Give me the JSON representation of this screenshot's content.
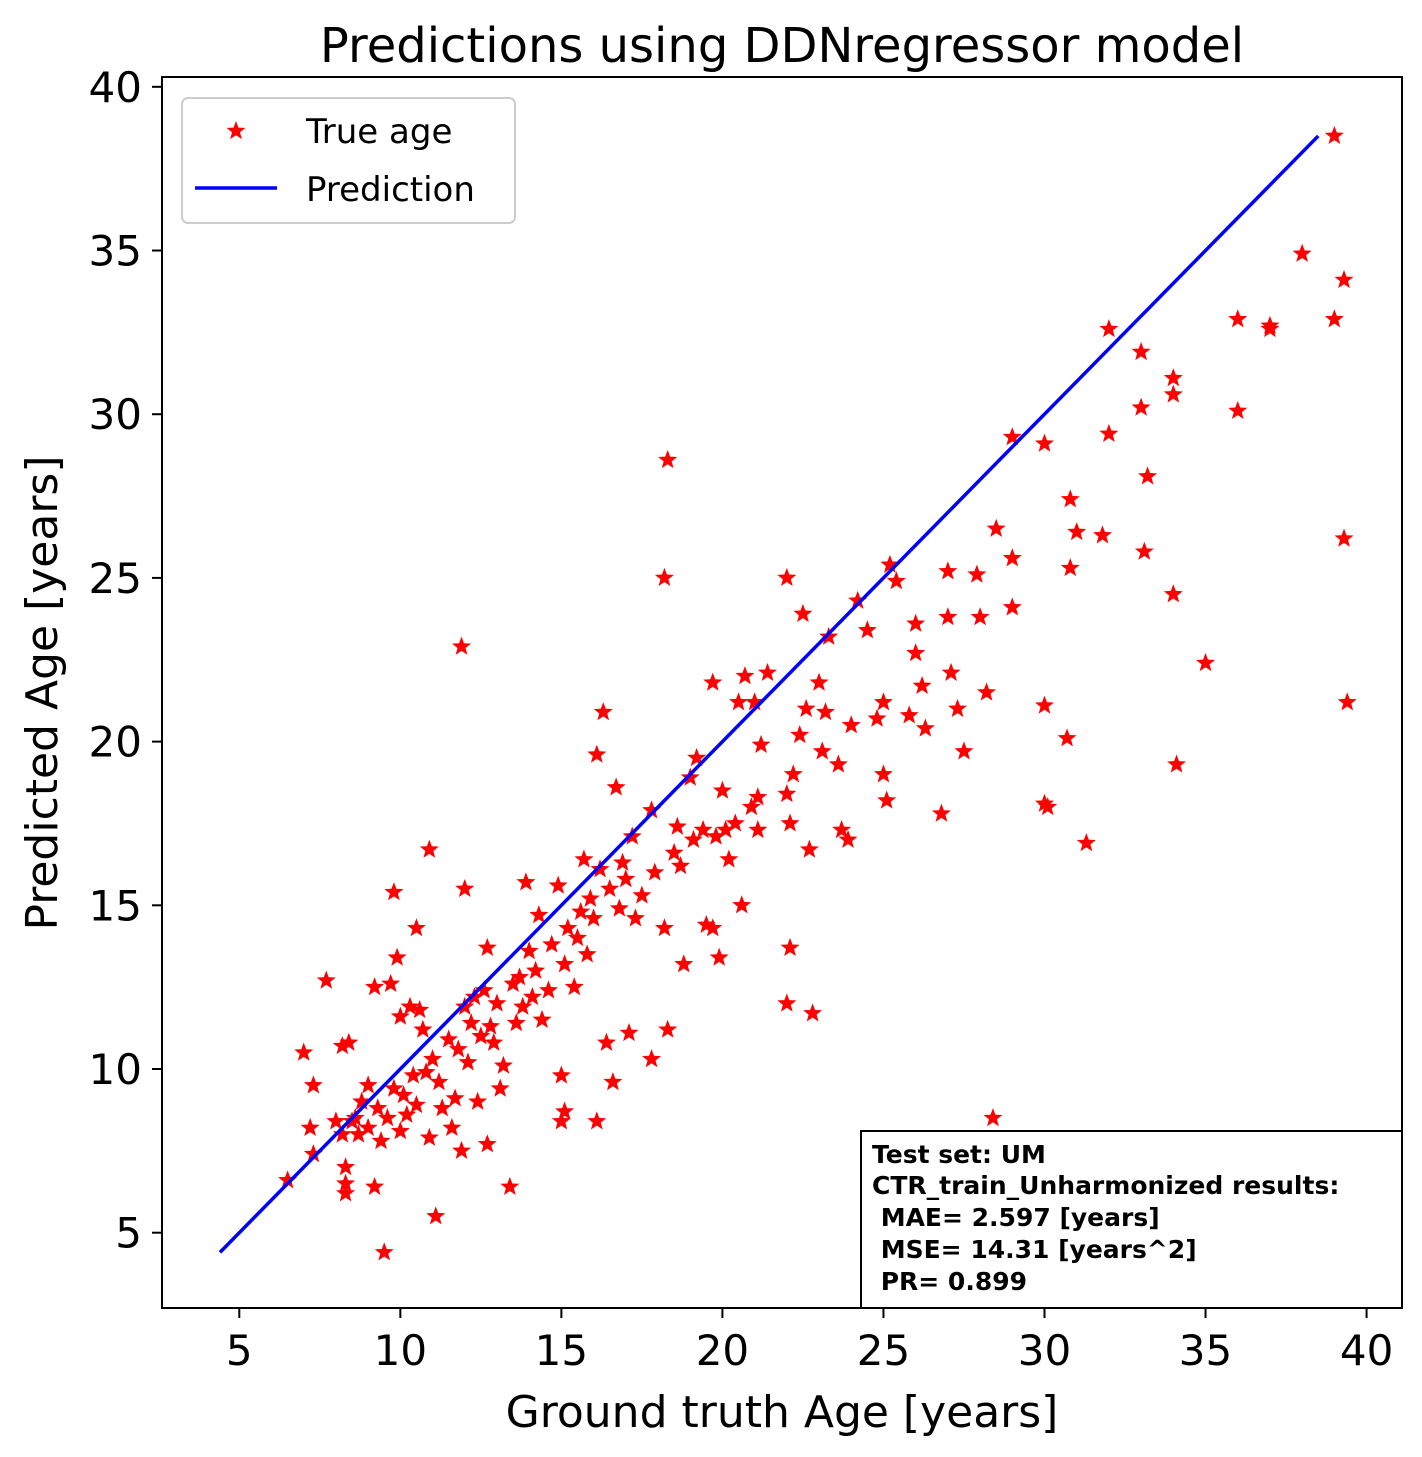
{
  "chart_data": {
    "type": "scatter",
    "title": "Predictions using DDNregressor model",
    "xlabel": "Ground truth Age [years]",
    "ylabel": "Predicted Age [years]",
    "xlim": [
      2.6,
      41.1
    ],
    "ylim": [
      2.7,
      40.3
    ],
    "xticks": [
      5,
      10,
      15,
      20,
      25,
      30,
      35,
      40
    ],
    "yticks": [
      5,
      10,
      15,
      20,
      25,
      30,
      35,
      40
    ],
    "grid": false,
    "legend_position": "upper-left",
    "legend": [
      "True age",
      "Prediction"
    ],
    "colors": {
      "points": "#ff0000",
      "line": "#0000ff"
    },
    "annotation_lines": [
      "Test set: UM",
      "CTR_train_Unharmonized results:",
      " MAE= 2.597 [years]",
      " MSE= 14.31 [years^2]",
      " PR= 0.899"
    ],
    "series": [
      {
        "name": "True age",
        "marker": "star",
        "points": [
          [
            6.5,
            6.6
          ],
          [
            7.0,
            10.5
          ],
          [
            7.2,
            8.2
          ],
          [
            7.3,
            7.4
          ],
          [
            7.3,
            9.5
          ],
          [
            7.7,
            12.7
          ],
          [
            8.0,
            8.4
          ],
          [
            8.2,
            8.0
          ],
          [
            8.2,
            10.7
          ],
          [
            8.3,
            7.0
          ],
          [
            8.3,
            6.5
          ],
          [
            8.3,
            6.2
          ],
          [
            8.4,
            10.8
          ],
          [
            8.5,
            8.4
          ],
          [
            8.6,
            8.5
          ],
          [
            8.7,
            8.0
          ],
          [
            8.8,
            9.0
          ],
          [
            9.0,
            9.5
          ],
          [
            9.0,
            8.2
          ],
          [
            9.2,
            12.5
          ],
          [
            9.2,
            6.4
          ],
          [
            9.3,
            8.8
          ],
          [
            9.4,
            7.8
          ],
          [
            9.5,
            4.4
          ],
          [
            9.6,
            8.5
          ],
          [
            9.7,
            12.6
          ],
          [
            9.8,
            15.4
          ],
          [
            9.8,
            9.4
          ],
          [
            9.9,
            13.4
          ],
          [
            10.0,
            11.6
          ],
          [
            10.0,
            8.1
          ],
          [
            10.1,
            9.2
          ],
          [
            10.2,
            8.6
          ],
          [
            10.3,
            11.9
          ],
          [
            10.4,
            9.8
          ],
          [
            10.5,
            14.3
          ],
          [
            10.5,
            8.9
          ],
          [
            10.6,
            11.8
          ],
          [
            10.7,
            11.2
          ],
          [
            10.8,
            9.9
          ],
          [
            10.9,
            16.7
          ],
          [
            10.9,
            7.9
          ],
          [
            11.0,
            10.3
          ],
          [
            11.1,
            5.5
          ],
          [
            11.2,
            9.6
          ],
          [
            11.3,
            8.8
          ],
          [
            11.5,
            10.9
          ],
          [
            11.6,
            8.2
          ],
          [
            11.7,
            9.1
          ],
          [
            11.8,
            10.6
          ],
          [
            11.9,
            22.9
          ],
          [
            11.9,
            7.5
          ],
          [
            12.0,
            15.5
          ],
          [
            12.0,
            11.9
          ],
          [
            12.1,
            10.2
          ],
          [
            12.2,
            11.4
          ],
          [
            12.3,
            12.2
          ],
          [
            12.4,
            9.0
          ],
          [
            12.5,
            11.0
          ],
          [
            12.6,
            12.4
          ],
          [
            12.7,
            7.7
          ],
          [
            12.7,
            13.7
          ],
          [
            12.8,
            11.3
          ],
          [
            12.9,
            10.8
          ],
          [
            13.0,
            12.0
          ],
          [
            13.1,
            9.4
          ],
          [
            13.2,
            10.1
          ],
          [
            13.4,
            6.4
          ],
          [
            13.5,
            12.6
          ],
          [
            13.6,
            11.4
          ],
          [
            13.7,
            12.8
          ],
          [
            13.8,
            11.9
          ],
          [
            13.9,
            15.7
          ],
          [
            14.0,
            13.6
          ],
          [
            14.1,
            12.2
          ],
          [
            14.2,
            13.0
          ],
          [
            14.3,
            14.7
          ],
          [
            14.4,
            11.5
          ],
          [
            14.6,
            12.4
          ],
          [
            14.7,
            13.8
          ],
          [
            14.9,
            15.6
          ],
          [
            15.0,
            8.4
          ],
          [
            15.0,
            9.8
          ],
          [
            15.1,
            8.7
          ],
          [
            15.1,
            13.2
          ],
          [
            15.2,
            14.3
          ],
          [
            15.4,
            12.5
          ],
          [
            15.5,
            14.0
          ],
          [
            15.6,
            14.8
          ],
          [
            15.7,
            16.4
          ],
          [
            15.8,
            13.5
          ],
          [
            15.9,
            15.2
          ],
          [
            16.0,
            14.6
          ],
          [
            16.1,
            19.6
          ],
          [
            16.1,
            8.4
          ],
          [
            16.2,
            16.1
          ],
          [
            16.3,
            20.9
          ],
          [
            16.4,
            10.8
          ],
          [
            16.5,
            15.5
          ],
          [
            16.6,
            9.6
          ],
          [
            16.7,
            18.6
          ],
          [
            16.8,
            14.9
          ],
          [
            16.9,
            16.3
          ],
          [
            17.0,
            15.8
          ],
          [
            17.1,
            11.1
          ],
          [
            17.2,
            17.1
          ],
          [
            17.3,
            14.6
          ],
          [
            17.5,
            15.3
          ],
          [
            17.8,
            10.3
          ],
          [
            17.8,
            17.9
          ],
          [
            17.9,
            16.0
          ],
          [
            18.2,
            25.0
          ],
          [
            18.2,
            14.3
          ],
          [
            18.3,
            28.6
          ],
          [
            18.3,
            11.2
          ],
          [
            18.5,
            16.6
          ],
          [
            18.6,
            17.4
          ],
          [
            18.7,
            16.2
          ],
          [
            18.8,
            13.2
          ],
          [
            19.0,
            18.9
          ],
          [
            19.1,
            17.0
          ],
          [
            19.2,
            19.5
          ],
          [
            19.4,
            17.3
          ],
          [
            19.5,
            14.4
          ],
          [
            19.7,
            21.8
          ],
          [
            19.7,
            14.3
          ],
          [
            19.8,
            17.1
          ],
          [
            19.9,
            13.4
          ],
          [
            20.0,
            18.5
          ],
          [
            20.1,
            17.3
          ],
          [
            20.2,
            16.4
          ],
          [
            20.4,
            17.5
          ],
          [
            20.5,
            21.2
          ],
          [
            20.6,
            15.0
          ],
          [
            20.7,
            22.0
          ],
          [
            20.9,
            18.0
          ],
          [
            21.0,
            21.2
          ],
          [
            21.1,
            18.3
          ],
          [
            21.1,
            17.3
          ],
          [
            21.2,
            19.9
          ],
          [
            21.4,
            22.1
          ],
          [
            22.0,
            25.0
          ],
          [
            22.0,
            18.4
          ],
          [
            22.1,
            13.7
          ],
          [
            22.0,
            12.0
          ],
          [
            22.1,
            17.5
          ],
          [
            22.2,
            19.0
          ],
          [
            22.4,
            20.2
          ],
          [
            22.5,
            23.9
          ],
          [
            22.6,
            21.0
          ],
          [
            22.7,
            16.7
          ],
          [
            22.8,
            11.7
          ],
          [
            23.0,
            21.8
          ],
          [
            23.1,
            19.7
          ],
          [
            23.2,
            20.9
          ],
          [
            23.3,
            23.2
          ],
          [
            23.6,
            19.3
          ],
          [
            23.7,
            17.3
          ],
          [
            23.9,
            17.0
          ],
          [
            24.0,
            20.5
          ],
          [
            24.2,
            24.3
          ],
          [
            24.5,
            23.4
          ],
          [
            24.8,
            20.7
          ],
          [
            25.0,
            21.2
          ],
          [
            25.0,
            19.0
          ],
          [
            25.1,
            18.2
          ],
          [
            25.2,
            25.4
          ],
          [
            25.4,
            24.9
          ],
          [
            25.8,
            20.8
          ],
          [
            26.0,
            23.6
          ],
          [
            26.0,
            22.7
          ],
          [
            26.2,
            21.7
          ],
          [
            26.3,
            20.4
          ],
          [
            26.8,
            17.8
          ],
          [
            27.0,
            25.2
          ],
          [
            27.0,
            23.8
          ],
          [
            27.1,
            22.1
          ],
          [
            27.3,
            21.0
          ],
          [
            27.5,
            19.7
          ],
          [
            27.9,
            25.1
          ],
          [
            28.0,
            23.8
          ],
          [
            28.2,
            21.5
          ],
          [
            28.4,
            8.5
          ],
          [
            28.5,
            26.5
          ],
          [
            29.0,
            29.3
          ],
          [
            29.0,
            25.6
          ],
          [
            29.0,
            24.1
          ],
          [
            30.0,
            29.1
          ],
          [
            30.0,
            21.1
          ],
          [
            30.0,
            18.1
          ],
          [
            30.1,
            18.0
          ],
          [
            30.7,
            20.1
          ],
          [
            30.8,
            25.3
          ],
          [
            30.8,
            27.4
          ],
          [
            31.0,
            26.4
          ],
          [
            31.3,
            16.9
          ],
          [
            31.8,
            26.3
          ],
          [
            32.0,
            29.4
          ],
          [
            32.0,
            32.6
          ],
          [
            33.0,
            30.2
          ],
          [
            33.0,
            31.9
          ],
          [
            33.1,
            25.8
          ],
          [
            33.2,
            28.1
          ],
          [
            34.0,
            30.6
          ],
          [
            34.0,
            31.1
          ],
          [
            34.0,
            24.5
          ],
          [
            34.1,
            19.3
          ],
          [
            35.0,
            22.4
          ],
          [
            36.0,
            30.1
          ],
          [
            36.0,
            32.9
          ],
          [
            37.0,
            32.6
          ],
          [
            37.0,
            32.7
          ],
          [
            38.0,
            34.9
          ],
          [
            39.0,
            38.5
          ],
          [
            39.0,
            32.9
          ],
          [
            39.3,
            34.1
          ],
          [
            39.3,
            26.2
          ],
          [
            39.4,
            21.2
          ]
        ]
      },
      {
        "name": "Prediction",
        "type": "line",
        "points": [
          [
            4.4,
            4.4
          ],
          [
            38.5,
            38.5
          ]
        ]
      }
    ]
  }
}
